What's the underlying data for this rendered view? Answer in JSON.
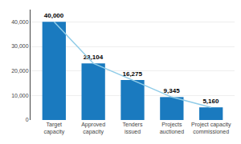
{
  "chart_data": {
    "type": "bar",
    "categories": [
      "Target\ncapacity",
      "Approved\ncapacity",
      "Tenders\nissued",
      "Projects\nauctioned",
      "Project capacity\ncommissioned"
    ],
    "series": [
      {
        "type": "bar",
        "color": "#1a7abf",
        "values": [
          40000,
          23104,
          16275,
          9345,
          5160
        ],
        "value_labels": [
          "40,000",
          "23,104",
          "16,275",
          "9,345",
          "5,160"
        ]
      },
      {
        "type": "line",
        "color": "#90cce8",
        "values": [
          40000,
          23104,
          16275,
          9345,
          5160
        ]
      }
    ],
    "ylim": [
      0,
      45000
    ],
    "yticks": [
      0,
      {
        "value": 10000,
        "label": "10,000"
      },
      {
        "value": 20000,
        "label": "20,000"
      },
      {
        "value": 30000,
        "label": "30,000"
      },
      {
        "value": 40000,
        "label": "40,000"
      }
    ],
    "grid": true,
    "data_labels": true
  }
}
